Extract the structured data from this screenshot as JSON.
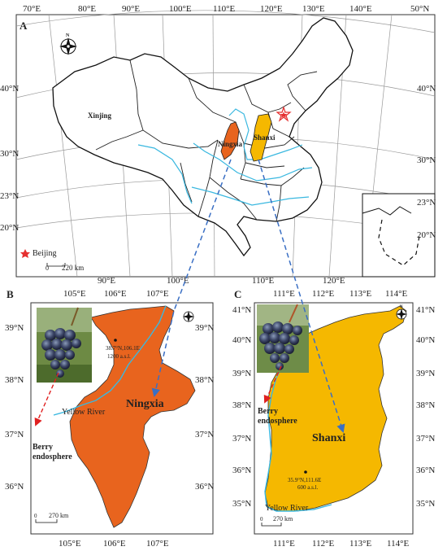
{
  "panel_a": {
    "letter": "A",
    "top_lon_labels": [
      "70°E",
      "80°E",
      "90°E",
      "100°E",
      "110°E",
      "120°E",
      "130°E",
      "140°E",
      "50°N"
    ],
    "bottom_lon_labels": [
      "90°E",
      "100°E",
      "110°E",
      "120°E"
    ],
    "left_lat_labels": [
      "40°N",
      "30°N",
      "23°N",
      "20°N"
    ],
    "right_lat_labels": [
      "40°N",
      "30°N",
      "23°N",
      "20°N"
    ],
    "inset_lat_labels": [
      "23°N",
      "20°N"
    ],
    "region_labels": {
      "xinjing": "Xinjing",
      "ningxia": "Ningxia",
      "shanxi": "Shanxi"
    },
    "legend": {
      "beijing": "Beijing",
      "scale": "220 km",
      "scale_zero": "0"
    },
    "colors": {
      "ningxia": "#e8641e",
      "shanxi": "#f5b800",
      "rivers": "#3ab8e0",
      "beijing": "#e53030"
    }
  },
  "panel_b": {
    "letter": "B",
    "top_lon_labels": [
      "105°E",
      "106°E",
      "107°E"
    ],
    "bottom_lon_labels": [
      "105°E",
      "106°E",
      "107°E"
    ],
    "left_lat_labels": [
      "39°N",
      "38°N",
      "37°N",
      "36°N"
    ],
    "right_lat_labels": [
      "39°N",
      "38°N",
      "37°N",
      "36°N"
    ],
    "region_name": "Ningxia",
    "site_label": [
      "38.7°N,106.1E",
      "1200 a.s.l."
    ],
    "river_label": "Yellow River",
    "berry_label": [
      "Berry",
      "endosphere"
    ],
    "scale_zero": "0",
    "scale": "270 km"
  },
  "panel_c": {
    "letter": "C",
    "top_lon_labels": [
      "111°E",
      "112°E",
      "113°E",
      "114°E"
    ],
    "bottom_lon_labels": [
      "111°E",
      "112°E",
      "113°E",
      "114°E"
    ],
    "left_lat_labels": [
      "41°N",
      "40°N",
      "39°N",
      "38°N",
      "37°N",
      "36°N",
      "35°N"
    ],
    "right_lat_labels": [
      "41°N",
      "40°N",
      "39°N",
      "38°N",
      "37°N",
      "36°N",
      "35°N"
    ],
    "region_name": "Shanxi",
    "site_label": [
      "35.9°N,111.6E",
      "600 a.s.l."
    ],
    "river_label": "Yellow River",
    "berry_label": [
      "Berry",
      "endosphere"
    ],
    "scale_zero": "0",
    "scale": "270 km"
  }
}
